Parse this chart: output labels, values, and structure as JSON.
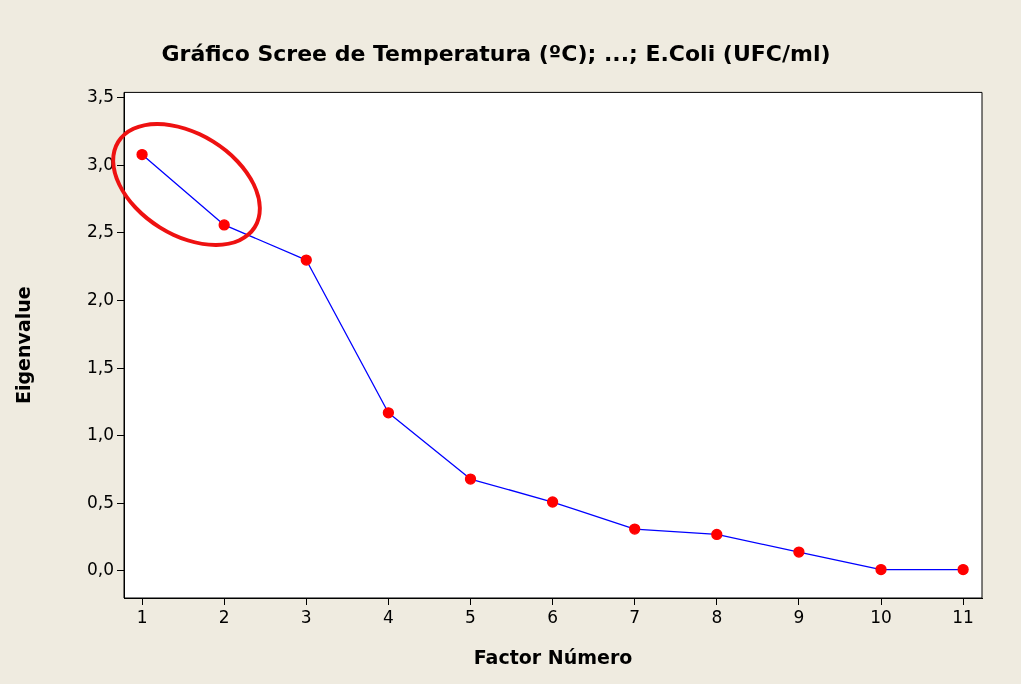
{
  "chart_data": {
    "type": "line",
    "title": "Gráfico Scree de Temperatura (ºC); ...; E.Coli (UFC/ml)",
    "xlabel": "Factor Número",
    "ylabel": "Eigenvalue",
    "x": [
      1,
      2,
      3,
      4,
      5,
      6,
      7,
      8,
      9,
      10,
      11
    ],
    "series": [
      {
        "color": "#0000ff",
        "colors": [
          "#ff0000",
          "#ff0000",
          "#ff0000",
          "#ff0000",
          "#ff0000",
          "#ff0000",
          "#ff0000",
          "#ff0000",
          "#ff0000",
          "#ff0000",
          "#ff0000"
        ],
        "values": [
          3.08,
          2.56,
          2.3,
          1.17,
          0.68,
          0.51,
          0.31,
          0.27,
          0.14,
          0.01,
          0.01
        ]
      }
    ],
    "xlim": [
      0.78,
      11.23
    ],
    "xticks": [
      1,
      2,
      3,
      4,
      5,
      6,
      7,
      8,
      9,
      10,
      11
    ],
    "ylim": [
      -0.2,
      3.54
    ],
    "yticks": [
      {
        "value": 0,
        "label": "0,0"
      },
      {
        "value": 0.5,
        "label": "0,5"
      },
      {
        "value": 1,
        "label": "1,0"
      },
      {
        "value": 1.5,
        "label": "1,5"
      },
      {
        "value": 2,
        "label": "2,0"
      },
      {
        "value": 2.5,
        "label": "2,5"
      },
      {
        "value": 3,
        "label": "3,0"
      },
      {
        "value": 3.5,
        "label": "3,5"
      }
    ],
    "grid": false,
    "legend": false,
    "marker": "circle",
    "line_style": "solid"
  }
}
